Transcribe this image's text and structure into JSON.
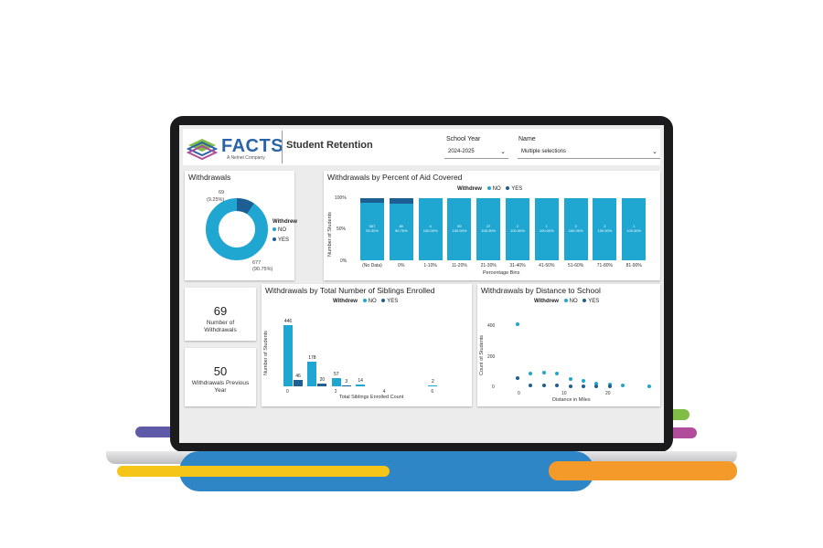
{
  "colors": {
    "no": "#1fa6d1",
    "yes": "#1e5f93"
  },
  "header": {
    "logo_text": "FACTS",
    "logo_sub": "A Nelnet Company",
    "title": "Student Retention",
    "school_year_label": "School Year",
    "school_year_value": "2024-2025",
    "name_label": "Name",
    "name_value": "Multiple selections"
  },
  "withdrawals_donut": {
    "title": "Withdrawals",
    "legend_title": "Withdrew",
    "legend_no": "NO",
    "legend_yes": "YES",
    "yes_count": "69",
    "yes_pct": "(9.25%)",
    "no_count": "677",
    "no_pct": "(90.75%)"
  },
  "kpi_withdrawals": {
    "value": "69",
    "label1": "Number of",
    "label2": "Withdrawals"
  },
  "kpi_previous": {
    "value": "50",
    "label1": "Withdrawals Previous",
    "label2": "Year"
  },
  "chart_data": [
    {
      "type": "bar",
      "title": "Withdrawals by Percent of Aid Covered",
      "legend_title": "Withdrew",
      "xlabel": "Percentage Bins",
      "ylabel": "Number of Students",
      "yticks": [
        "100%",
        "50%",
        "0%"
      ],
      "categories": [
        "(No Data)",
        "0%",
        "1-10%",
        "11-20%",
        "21-30%",
        "31-40%",
        "41-50%",
        "51-60%",
        "71-80%",
        "81-90%"
      ],
      "series": [
        {
          "name": "NO",
          "values": [
            93.32,
            90.75,
            100,
            100,
            100,
            100,
            100,
            100,
            100,
            100
          ]
        },
        {
          "name": "YES",
          "values": [
            6.68,
            9.25,
            0,
            0,
            0,
            0,
            0,
            0,
            0,
            0
          ]
        }
      ],
      "data_labels": [
        [
          "557",
          "93.32%"
        ],
        [
          "80",
          "90.75%"
        ],
        [
          "4",
          "100.00%"
        ],
        [
          "59",
          "100.00%"
        ],
        [
          "27",
          "100.00%"
        ],
        [
          "2",
          "100.00%"
        ],
        [
          "1",
          "100.00%"
        ],
        [
          "3",
          "100.00%"
        ],
        [
          "2",
          "100.00%"
        ],
        [
          "1",
          "100.00%"
        ]
      ]
    },
    {
      "type": "bar",
      "title": "Withdrawals by Total Number of Siblings Enrolled",
      "legend_title": "Withdrew",
      "xlabel": "Total Siblings Enrolled Count",
      "ylabel": "Number of Students",
      "xticks": [
        "0",
        "2",
        "4",
        "6"
      ],
      "categories": [
        "0",
        "1",
        "2",
        "3",
        "4",
        "5",
        "6"
      ],
      "series": [
        {
          "name": "NO",
          "values": [
            446,
            178,
            57,
            14,
            null,
            null,
            2
          ]
        },
        {
          "name": "YES",
          "values": [
            46,
            20,
            3,
            null,
            null,
            null,
            null
          ]
        }
      ],
      "ylim": [
        0,
        480
      ]
    },
    {
      "type": "scatter",
      "title": "Withdrawals by Distance to School",
      "legend_title": "Withdrew",
      "xlabel": "Distance in Miles",
      "ylabel": "Count of Students",
      "yticks": [
        "400",
        "200",
        "0"
      ],
      "xticks": [
        "0",
        "10",
        "20"
      ],
      "xlim": [
        0,
        30
      ],
      "ylim": [
        0,
        450
      ],
      "series": [
        {
          "name": "NO",
          "points": [
            [
              0,
              425
            ],
            [
              3,
              90
            ],
            [
              6,
              92
            ],
            [
              9,
              85
            ],
            [
              12,
              50
            ],
            [
              15,
              35
            ],
            [
              18,
              20
            ],
            [
              21,
              10
            ],
            [
              24,
              5
            ],
            [
              30,
              3
            ]
          ]
        },
        {
          "name": "YES",
          "points": [
            [
              0,
              55
            ],
            [
              3,
              8
            ],
            [
              6,
              6
            ],
            [
              9,
              4
            ],
            [
              12,
              2
            ],
            [
              15,
              2
            ],
            [
              18,
              2
            ],
            [
              21,
              1
            ]
          ]
        }
      ]
    }
  ]
}
